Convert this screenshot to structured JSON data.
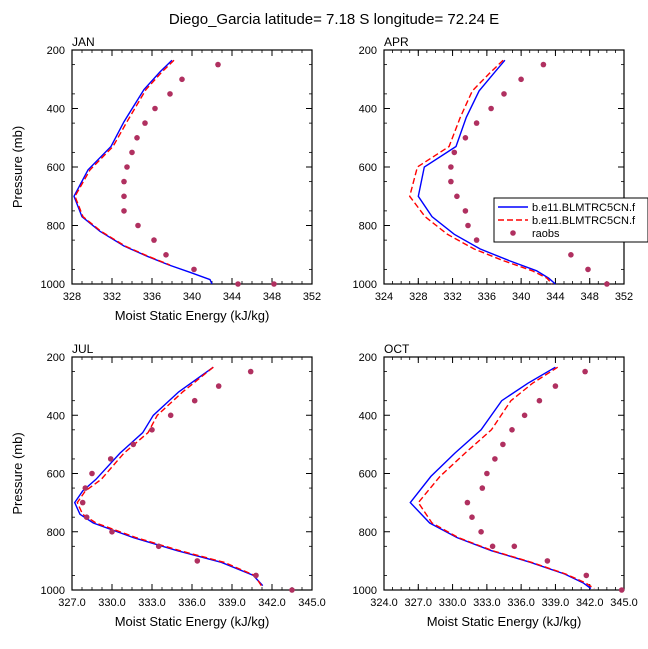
{
  "figure": {
    "title": "Diego_Garcia  latitude= 7.18 S longitude= 72.24 E",
    "colors": {
      "model1": "#0000ff",
      "model2": "#ff0000",
      "raobs": "#b03060"
    }
  },
  "legend": {
    "entries": [
      {
        "label": "b.e11.BLMTRC5CN.f",
        "style": "solid",
        "color": "#0000ff"
      },
      {
        "label": "b.e11.BLMTRC5CN.f",
        "style": "dashed",
        "color": "#ff0000"
      },
      {
        "label": "raobs",
        "style": "marker",
        "color": "#b03060"
      }
    ],
    "placement": "right, over APR panel"
  },
  "chart_data": [
    {
      "type": "line",
      "panel": "JAN",
      "title": "JAN",
      "xlabel": "Moist Static Energy (kJ/kg)",
      "ylabel": "Pressure (mb)",
      "xlim": [
        328,
        352
      ],
      "ylim": [
        1000,
        200
      ],
      "xticks": [
        328,
        332,
        336,
        340,
        344,
        348,
        352
      ],
      "xtick_labels": [
        "328",
        "332",
        "336",
        "340",
        "344",
        "348",
        "352"
      ],
      "yticks": [
        200,
        400,
        600,
        800,
        1000
      ],
      "series": [
        {
          "kind": "line",
          "style": "solid",
          "color": "#0000ff",
          "x": [
            338.0,
            336.8,
            335.2,
            333.2,
            331.9,
            329.6,
            328.2,
            329.0,
            330.8,
            333.2,
            335.5,
            337.7,
            339.8,
            341.8,
            342.0
          ],
          "y": [
            235,
            275,
            335,
            445,
            530,
            610,
            700,
            770,
            820,
            870,
            905,
            935,
            960,
            985,
            1000
          ]
        },
        {
          "kind": "line",
          "style": "dashed",
          "color": "#ff0000",
          "x": [
            338.2,
            337.0,
            335.4,
            333.5,
            332.1,
            329.8,
            328.3,
            329.1,
            330.9,
            333.3,
            335.6,
            337.8
          ],
          "y": [
            235,
            275,
            335,
            445,
            530,
            610,
            700,
            770,
            820,
            870,
            905,
            935
          ]
        },
        {
          "kind": "marker",
          "name": "raobs",
          "color": "#b03060",
          "x": [
            342.6,
            339.0,
            337.8,
            336.3,
            335.3,
            334.5,
            334.0,
            333.5,
            333.2,
            333.2,
            333.2,
            334.6,
            336.2,
            337.4,
            340.2,
            344.6,
            348.2
          ],
          "y": [
            250,
            300,
            350,
            400,
            450,
            500,
            550,
            600,
            650,
            700,
            750,
            800,
            850,
            900,
            950,
            1000,
            1000
          ]
        }
      ]
    },
    {
      "type": "line",
      "panel": "APR",
      "title": "APR",
      "xlabel": "",
      "ylabel": "",
      "xlim": [
        324,
        352
      ],
      "ylim": [
        1000,
        200
      ],
      "xticks": [
        324,
        328,
        332,
        336,
        340,
        344,
        348,
        352
      ],
      "xtick_labels": [
        "324",
        "328",
        "332",
        "336",
        "340",
        "344",
        "348",
        "352"
      ],
      "yticks": [
        200,
        400,
        600,
        800,
        1000
      ],
      "series": [
        {
          "kind": "line",
          "style": "solid",
          "color": "#0000ff",
          "x": [
            338.1,
            336.8,
            335.1,
            333.6,
            332.4,
            328.7,
            328.0,
            329.6,
            332.2,
            335.2,
            338.6,
            341.8,
            343.2,
            344.0
          ],
          "y": [
            235,
            280,
            340,
            430,
            530,
            600,
            700,
            770,
            830,
            880,
            920,
            955,
            980,
            1000
          ]
        },
        {
          "kind": "line",
          "style": "dashed",
          "color": "#ff0000",
          "x": [
            337.9,
            336.3,
            334.3,
            332.9,
            331.6,
            327.9,
            327.0,
            328.8,
            331.4,
            334.5,
            337.9,
            341.3,
            343.0,
            343.6
          ],
          "y": [
            235,
            280,
            340,
            430,
            530,
            600,
            700,
            770,
            830,
            880,
            920,
            955,
            980,
            1000
          ]
        },
        {
          "kind": "marker",
          "name": "raobs",
          "color": "#b03060",
          "x": [
            342.6,
            340.0,
            338.0,
            336.5,
            334.8,
            333.5,
            332.2,
            331.8,
            331.8,
            332.5,
            333.5,
            333.8,
            334.8,
            345.8,
            347.8,
            350.0
          ],
          "y": [
            250,
            300,
            350,
            400,
            450,
            500,
            550,
            600,
            650,
            700,
            750,
            800,
            850,
            900,
            950,
            1000
          ]
        }
      ]
    },
    {
      "type": "line",
      "panel": "JUL",
      "title": "JUL",
      "xlabel": "Moist Static Energy (kJ/kg)",
      "ylabel": "Pressure (mb)",
      "xlim": [
        327,
        345
      ],
      "ylim": [
        1000,
        200
      ],
      "xticks": [
        327,
        330,
        333,
        336,
        339,
        342,
        345
      ],
      "xtick_labels": [
        "327.0",
        "330.0",
        "333.0",
        "336.0",
        "339.0",
        "342.0",
        "345.0"
      ],
      "yticks": [
        200,
        400,
        600,
        800,
        1000
      ],
      "series": [
        {
          "kind": "line",
          "style": "solid",
          "color": "#0000ff",
          "x": [
            337.6,
            335.0,
            333.1,
            332.3,
            330.6,
            328.8,
            327.8,
            327.2,
            327.6,
            328.6,
            331.6,
            334.9,
            338.2,
            340.6,
            341.3
          ],
          "y": [
            235,
            320,
            400,
            460,
            530,
            620,
            660,
            700,
            740,
            770,
            820,
            865,
            905,
            950,
            985
          ]
        },
        {
          "kind": "line",
          "style": "dashed",
          "color": "#ff0000",
          "x": [
            337.6,
            335.3,
            333.4,
            332.7,
            330.9,
            329.2,
            328.0,
            327.4,
            327.8,
            328.8,
            331.8,
            335.1,
            338.4,
            340.7,
            341.2
          ],
          "y": [
            235,
            320,
            400,
            460,
            530,
            620,
            660,
            700,
            740,
            770,
            820,
            865,
            905,
            950,
            985
          ]
        },
        {
          "kind": "marker",
          "name": "raobs",
          "color": "#b03060",
          "x": [
            340.4,
            338.0,
            336.2,
            334.4,
            333.0,
            331.6,
            329.9,
            328.5,
            328.0,
            327.8,
            328.1,
            330.0,
            333.5,
            336.4,
            340.8,
            343.5
          ],
          "y": [
            250,
            300,
            350,
            400,
            450,
            500,
            550,
            600,
            650,
            700,
            750,
            800,
            850,
            900,
            950,
            1000
          ]
        }
      ]
    },
    {
      "type": "line",
      "panel": "OCT",
      "title": "OCT",
      "xlabel": "Moist Static Energy (kJ/kg)",
      "ylabel": "",
      "xlim": [
        324,
        345
      ],
      "ylim": [
        1000,
        200
      ],
      "xticks": [
        324,
        327,
        330,
        333,
        336,
        339,
        342,
        345
      ],
      "xtick_labels": [
        "324.0",
        "327.0",
        "330.0",
        "333.0",
        "336.0",
        "339.0",
        "342.0",
        "345.0"
      ],
      "yticks": [
        200,
        400,
        600,
        800,
        1000
      ],
      "series": [
        {
          "kind": "line",
          "style": "solid",
          "color": "#0000ff",
          "x": [
            339.0,
            336.6,
            334.3,
            332.5,
            330.2,
            328.1,
            326.3,
            328.0,
            330.4,
            333.4,
            336.8,
            339.8,
            341.4,
            342.1
          ],
          "y": [
            235,
            290,
            350,
            450,
            530,
            610,
            700,
            770,
            820,
            865,
            905,
            945,
            975,
            995
          ]
        },
        {
          "kind": "line",
          "style": "dashed",
          "color": "#ff0000",
          "x": [
            339.2,
            337.0,
            335.1,
            333.4,
            331.1,
            328.9,
            327.0,
            328.2,
            330.5,
            333.5,
            336.9,
            339.9,
            341.6,
            342.4
          ],
          "y": [
            235,
            290,
            350,
            450,
            530,
            610,
            700,
            770,
            820,
            865,
            905,
            945,
            975,
            995
          ]
        },
        {
          "kind": "marker",
          "name": "raobs",
          "color": "#b03060",
          "x": [
            341.6,
            339.0,
            337.6,
            336.3,
            335.2,
            334.4,
            333.7,
            333.0,
            332.6,
            331.3,
            331.7,
            332.5,
            333.5,
            335.4,
            338.3,
            341.7,
            344.8
          ],
          "y": [
            250,
            300,
            350,
            400,
            450,
            500,
            550,
            600,
            650,
            700,
            750,
            800,
            850,
            850,
            900,
            950,
            1000
          ]
        }
      ]
    }
  ]
}
